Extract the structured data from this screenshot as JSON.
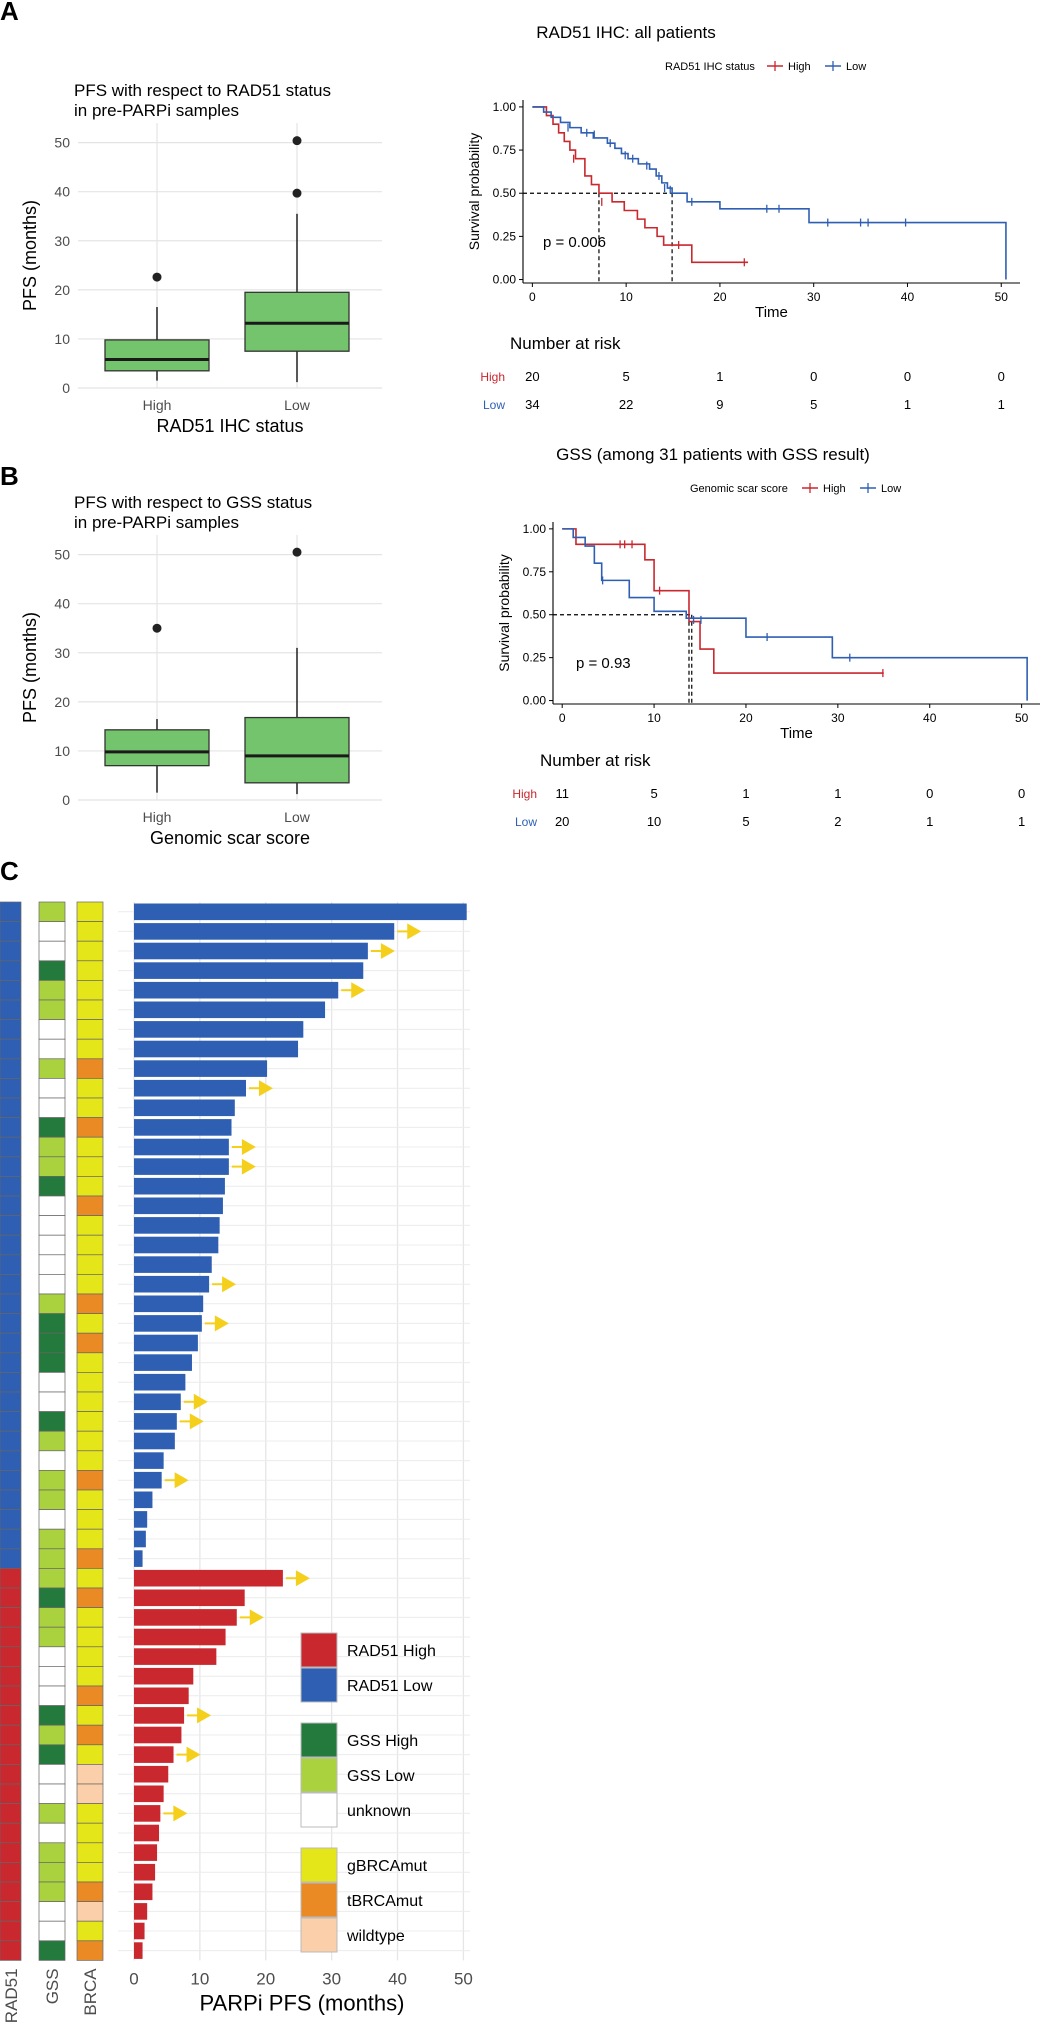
{
  "panel_labels": [
    "A",
    "B",
    "C"
  ],
  "colors": {
    "high": "#c8282e",
    "low": "#2f5fb3",
    "box": "#74c46d",
    "gss_high": "#247a3c",
    "gss_low": "#a9d23e",
    "unknown": "#ffffff",
    "gbrca": "#e5e619",
    "tbrca": "#e98a25",
    "wildtype": "#fbcfa9",
    "arrow": "#f4d01c"
  },
  "chart_data": [
    {
      "type": "box",
      "id": "boxA",
      "title": "PFS with respect to RAD51 status",
      "subtitle": "in pre-PARPi samples",
      "xlabel": "RAD51 IHC status",
      "ylabel": "PFS (months)",
      "ylim": [
        0,
        54
      ],
      "yticks": [
        0,
        10,
        20,
        30,
        40,
        50
      ],
      "categories": [
        "High",
        "Low"
      ],
      "boxes": [
        {
          "name": "High",
          "whisker_low": 1.5,
          "q1": 3.5,
          "median": 5.8,
          "q3": 9.8,
          "whisker_high": 16.5,
          "outliers": [
            22.6
          ]
        },
        {
          "name": "Low",
          "whisker_low": 1.2,
          "q1": 7.5,
          "median": 13.2,
          "q3": 19.5,
          "whisker_high": 35.5,
          "outliers": [
            39.7,
            50.4
          ]
        }
      ]
    },
    {
      "type": "km",
      "id": "kmA",
      "title": "RAD51 IHC: all patients",
      "legend_title": "RAD51 IHC status",
      "legend_items": [
        "High",
        "Low"
      ],
      "xlabel": "Time",
      "ylabel": "Survival probability",
      "xlim": [
        -1,
        52
      ],
      "xticks": [
        0,
        10,
        20,
        30,
        40,
        50
      ],
      "ylim": [
        -0.02,
        1.04
      ],
      "yticks": [
        "0.00",
        "0.25",
        "0.50",
        "0.75",
        "1.00"
      ],
      "pvalue": "p = 0.006",
      "medians": [
        7.1,
        14.9
      ],
      "series": [
        {
          "name": "High",
          "steps": [
            [
              0,
              1
            ],
            [
              1.5,
              0.95
            ],
            [
              2.2,
              0.9
            ],
            [
              2.8,
              0.85
            ],
            [
              3.4,
              0.8
            ],
            [
              4,
              0.75
            ],
            [
              4.6,
              0.7
            ],
            [
              5.6,
              0.6
            ],
            [
              6.3,
              0.55
            ],
            [
              7.1,
              0.5
            ],
            [
              8.5,
              0.45
            ],
            [
              9.8,
              0.4
            ],
            [
              11.2,
              0.35
            ],
            [
              12,
              0.3
            ],
            [
              13.3,
              0.25
            ],
            [
              14,
              0.2
            ],
            [
              15.3,
              0.2
            ],
            [
              17,
              0.1
            ],
            [
              23,
              0.1
            ]
          ],
          "censor": [
            [
              4.4,
              0.7
            ],
            [
              7.4,
              0.45
            ],
            [
              15.6,
              0.2
            ],
            [
              22.6,
              0.1
            ]
          ]
        },
        {
          "name": "Low",
          "steps": [
            [
              0,
              1
            ],
            [
              1.2,
              0.97
            ],
            [
              2,
              0.94
            ],
            [
              3,
              0.91
            ],
            [
              4,
              0.88
            ],
            [
              5.2,
              0.85
            ],
            [
              6.5,
              0.82
            ],
            [
              8,
              0.79
            ],
            [
              8.8,
              0.76
            ],
            [
              9.5,
              0.73
            ],
            [
              10.2,
              0.7
            ],
            [
              11.3,
              0.67
            ],
            [
              12.5,
              0.64
            ],
            [
              13.2,
              0.6
            ],
            [
              13.8,
              0.56
            ],
            [
              14.4,
              0.53
            ],
            [
              14.9,
              0.5
            ],
            [
              16.5,
              0.45
            ],
            [
              20,
              0.41
            ],
            [
              29.5,
              0.33
            ],
            [
              47,
              0.33
            ],
            [
              50.5,
              0.0
            ]
          ],
          "censor": [
            [
              3.8,
              0.88
            ],
            [
              5.8,
              0.85
            ],
            [
              6.6,
              0.84
            ],
            [
              8.3,
              0.79
            ],
            [
              9.9,
              0.72
            ],
            [
              10.7,
              0.7
            ],
            [
              12.2,
              0.66
            ],
            [
              13.5,
              0.6
            ],
            [
              14.1,
              0.53
            ],
            [
              14.7,
              0.52
            ],
            [
              17,
              0.45
            ],
            [
              25,
              0.41
            ],
            [
              26.3,
              0.41
            ],
            [
              31.5,
              0.33
            ],
            [
              35,
              0.33
            ],
            [
              35.8,
              0.33
            ],
            [
              39.8,
              0.33
            ]
          ]
        }
      ],
      "risk_title": "Number at risk",
      "risk_times": [
        0,
        10,
        20,
        30,
        40,
        50
      ],
      "risk_rows": [
        {
          "name": "High",
          "values": [
            20,
            5,
            1,
            0,
            0,
            0
          ]
        },
        {
          "name": "Low",
          "values": [
            34,
            22,
            9,
            5,
            1,
            1
          ]
        }
      ]
    },
    {
      "type": "box",
      "id": "boxB",
      "title": "PFS with respect to GSS status",
      "subtitle": "in pre-PARPi samples",
      "xlabel": "Genomic scar score",
      "ylabel": "PFS (months)",
      "ylim": [
        0,
        54
      ],
      "yticks": [
        0,
        10,
        20,
        30,
        40,
        50
      ],
      "categories": [
        "High",
        "Low"
      ],
      "boxes": [
        {
          "name": "High",
          "whisker_low": 1.5,
          "q1": 7.0,
          "median": 9.8,
          "q3": 14.3,
          "whisker_high": 16.5,
          "outliers": [
            35.0
          ]
        },
        {
          "name": "Low",
          "whisker_low": 1.2,
          "q1": 3.5,
          "median": 9.0,
          "q3": 16.8,
          "whisker_high": 31.0,
          "outliers": [
            50.5
          ]
        }
      ]
    },
    {
      "type": "km",
      "id": "kmB",
      "title": "GSS (among 31 patients with GSS result)",
      "legend_title": "Genomic scar score",
      "legend_items": [
        "High",
        "Low"
      ],
      "xlabel": "Time",
      "ylabel": "Survival probability",
      "xlim": [
        -1,
        52
      ],
      "xticks": [
        0,
        10,
        20,
        30,
        40,
        50
      ],
      "ylim": [
        -0.02,
        1.04
      ],
      "yticks": [
        "0.00",
        "0.25",
        "0.50",
        "0.75",
        "1.00"
      ],
      "pvalue": "p = 0.93",
      "medians": [
        13.8,
        14.1
      ],
      "series": [
        {
          "name": "High",
          "steps": [
            [
              0,
              1
            ],
            [
              1.5,
              0.91
            ],
            [
              9,
              0.82
            ],
            [
              10,
              0.64
            ],
            [
              13.8,
              0.46
            ],
            [
              14.1,
              0.46
            ],
            [
              15,
              0.3
            ],
            [
              16.5,
              0.16
            ],
            [
              35,
              0.16
            ]
          ],
          "censor": [
            [
              6.3,
              0.91
            ],
            [
              6.8,
              0.91
            ],
            [
              7.6,
              0.91
            ],
            [
              10.6,
              0.64
            ],
            [
              34.9,
              0.16
            ]
          ]
        },
        {
          "name": "Low",
          "steps": [
            [
              0,
              1
            ],
            [
              1.2,
              0.95
            ],
            [
              2.5,
              0.9
            ],
            [
              3.5,
              0.8
            ],
            [
              4.3,
              0.7
            ],
            [
              7.3,
              0.6
            ],
            [
              10,
              0.52
            ],
            [
              13.5,
              0.48
            ],
            [
              20,
              0.37
            ],
            [
              29.4,
              0.25
            ],
            [
              50.5,
              0.25
            ],
            [
              50.6,
              0.0
            ]
          ],
          "censor": [
            [
              4.4,
              0.7
            ],
            [
              14.3,
              0.47
            ],
            [
              15.1,
              0.47
            ],
            [
              22.3,
              0.37
            ],
            [
              31.3,
              0.25
            ]
          ]
        }
      ],
      "risk_title": "Number at risk",
      "risk_times": [
        0,
        10,
        20,
        30,
        40,
        50
      ],
      "risk_rows": [
        {
          "name": "High",
          "values": [
            11,
            5,
            1,
            1,
            0,
            0
          ]
        },
        {
          "name": "Low",
          "values": [
            20,
            10,
            5,
            2,
            1,
            1
          ]
        }
      ]
    },
    {
      "type": "swimmer",
      "id": "swimC",
      "xlabel": "PARPi PFS (months)",
      "xlim": [
        0,
        51
      ],
      "xticks": [
        0,
        10,
        20,
        30,
        40,
        50
      ],
      "track_labels": [
        "RAD51",
        "GSS",
        "BRCA"
      ],
      "legend": [
        {
          "key": "high",
          "label": "RAD51 High"
        },
        {
          "key": "low",
          "label": "RAD51 Low"
        },
        {
          "key": "gss_high",
          "label": "GSS High"
        },
        {
          "key": "gss_low",
          "label": "GSS Low"
        },
        {
          "key": "unknown",
          "label": "unknown"
        },
        {
          "key": "gbrca",
          "label": "gBRCAmut"
        },
        {
          "key": "tbrca",
          "label": "tBRCAmut"
        },
        {
          "key": "wildtype",
          "label": "wildtype"
        }
      ],
      "patients": [
        {
          "rad51": "L",
          "gss": "L",
          "brca": "g",
          "pfs": 50.5,
          "ongoing": false
        },
        {
          "rad51": "L",
          "gss": "U",
          "brca": "g",
          "pfs": 39.5,
          "ongoing": true
        },
        {
          "rad51": "L",
          "gss": "U",
          "brca": "g",
          "pfs": 35.5,
          "ongoing": true
        },
        {
          "rad51": "L",
          "gss": "H",
          "brca": "g",
          "pfs": 34.8,
          "ongoing": false
        },
        {
          "rad51": "L",
          "gss": "L",
          "brca": "g",
          "pfs": 31.0,
          "ongoing": true
        },
        {
          "rad51": "L",
          "gss": "L",
          "brca": "g",
          "pfs": 29.0,
          "ongoing": false
        },
        {
          "rad51": "L",
          "gss": "U",
          "brca": "g",
          "pfs": 25.7,
          "ongoing": false
        },
        {
          "rad51": "L",
          "gss": "U",
          "brca": "g",
          "pfs": 24.9,
          "ongoing": false
        },
        {
          "rad51": "L",
          "gss": "L",
          "brca": "t",
          "pfs": 20.2,
          "ongoing": false
        },
        {
          "rad51": "L",
          "gss": "U",
          "brca": "g",
          "pfs": 17.0,
          "ongoing": true
        },
        {
          "rad51": "L",
          "gss": "U",
          "brca": "g",
          "pfs": 15.3,
          "ongoing": false
        },
        {
          "rad51": "L",
          "gss": "H",
          "brca": "t",
          "pfs": 14.8,
          "ongoing": false
        },
        {
          "rad51": "L",
          "gss": "L",
          "brca": "g",
          "pfs": 14.4,
          "ongoing": true
        },
        {
          "rad51": "L",
          "gss": "L",
          "brca": "g",
          "pfs": 14.4,
          "ongoing": true
        },
        {
          "rad51": "L",
          "gss": "H",
          "brca": "g",
          "pfs": 13.8,
          "ongoing": false
        },
        {
          "rad51": "L",
          "gss": "U",
          "brca": "t",
          "pfs": 13.5,
          "ongoing": false
        },
        {
          "rad51": "L",
          "gss": "U",
          "brca": "g",
          "pfs": 13.0,
          "ongoing": false
        },
        {
          "rad51": "L",
          "gss": "U",
          "brca": "g",
          "pfs": 12.8,
          "ongoing": false
        },
        {
          "rad51": "L",
          "gss": "U",
          "brca": "g",
          "pfs": 11.8,
          "ongoing": false
        },
        {
          "rad51": "L",
          "gss": "U",
          "brca": "g",
          "pfs": 11.4,
          "ongoing": true
        },
        {
          "rad51": "L",
          "gss": "L",
          "brca": "t",
          "pfs": 10.5,
          "ongoing": false
        },
        {
          "rad51": "L",
          "gss": "H",
          "brca": "g",
          "pfs": 10.3,
          "ongoing": true
        },
        {
          "rad51": "L",
          "gss": "H",
          "brca": "t",
          "pfs": 9.7,
          "ongoing": false
        },
        {
          "rad51": "L",
          "gss": "H",
          "brca": "g",
          "pfs": 8.8,
          "ongoing": false
        },
        {
          "rad51": "L",
          "gss": "U",
          "brca": "g",
          "pfs": 7.8,
          "ongoing": false
        },
        {
          "rad51": "L",
          "gss": "U",
          "brca": "g",
          "pfs": 7.1,
          "ongoing": true
        },
        {
          "rad51": "L",
          "gss": "H",
          "brca": "g",
          "pfs": 6.5,
          "ongoing": true
        },
        {
          "rad51": "L",
          "gss": "L",
          "brca": "g",
          "pfs": 6.2,
          "ongoing": false
        },
        {
          "rad51": "L",
          "gss": "U",
          "brca": "g",
          "pfs": 4.5,
          "ongoing": false
        },
        {
          "rad51": "L",
          "gss": "L",
          "brca": "t",
          "pfs": 4.2,
          "ongoing": true
        },
        {
          "rad51": "L",
          "gss": "L",
          "brca": "g",
          "pfs": 2.8,
          "ongoing": false
        },
        {
          "rad51": "L",
          "gss": "U",
          "brca": "g",
          "pfs": 2.0,
          "ongoing": false
        },
        {
          "rad51": "L",
          "gss": "L",
          "brca": "g",
          "pfs": 1.8,
          "ongoing": false
        },
        {
          "rad51": "L",
          "gss": "L",
          "brca": "t",
          "pfs": 1.3,
          "ongoing": false
        },
        {
          "rad51": "H",
          "gss": "L",
          "brca": "g",
          "pfs": 22.6,
          "ongoing": true
        },
        {
          "rad51": "H",
          "gss": "H",
          "brca": "t",
          "pfs": 16.8,
          "ongoing": false
        },
        {
          "rad51": "H",
          "gss": "L",
          "brca": "g",
          "pfs": 15.6,
          "ongoing": true
        },
        {
          "rad51": "H",
          "gss": "L",
          "brca": "g",
          "pfs": 13.9,
          "ongoing": false
        },
        {
          "rad51": "H",
          "gss": "U",
          "brca": "g",
          "pfs": 12.5,
          "ongoing": false
        },
        {
          "rad51": "H",
          "gss": "U",
          "brca": "g",
          "pfs": 9.0,
          "ongoing": false
        },
        {
          "rad51": "H",
          "gss": "U",
          "brca": "t",
          "pfs": 8.3,
          "ongoing": false
        },
        {
          "rad51": "H",
          "gss": "H",
          "brca": "g",
          "pfs": 7.6,
          "ongoing": true
        },
        {
          "rad51": "H",
          "gss": "L",
          "brca": "t",
          "pfs": 7.2,
          "ongoing": false
        },
        {
          "rad51": "H",
          "gss": "H",
          "brca": "g",
          "pfs": 6.0,
          "ongoing": true
        },
        {
          "rad51": "H",
          "gss": "U",
          "brca": "w",
          "pfs": 5.2,
          "ongoing": false
        },
        {
          "rad51": "H",
          "gss": "U",
          "brca": "w",
          "pfs": 4.5,
          "ongoing": false
        },
        {
          "rad51": "H",
          "gss": "L",
          "brca": "g",
          "pfs": 4.0,
          "ongoing": true
        },
        {
          "rad51": "H",
          "gss": "U",
          "brca": "g",
          "pfs": 3.8,
          "ongoing": false
        },
        {
          "rad51": "H",
          "gss": "L",
          "brca": "g",
          "pfs": 3.5,
          "ongoing": false
        },
        {
          "rad51": "H",
          "gss": "L",
          "brca": "g",
          "pfs": 3.2,
          "ongoing": false
        },
        {
          "rad51": "H",
          "gss": "L",
          "brca": "t",
          "pfs": 2.8,
          "ongoing": false
        },
        {
          "rad51": "H",
          "gss": "U",
          "brca": "w",
          "pfs": 2.0,
          "ongoing": false
        },
        {
          "rad51": "H",
          "gss": "U",
          "brca": "g",
          "pfs": 1.6,
          "ongoing": false
        },
        {
          "rad51": "H",
          "gss": "H",
          "brca": "t",
          "pfs": 1.3,
          "ongoing": false
        }
      ]
    }
  ]
}
